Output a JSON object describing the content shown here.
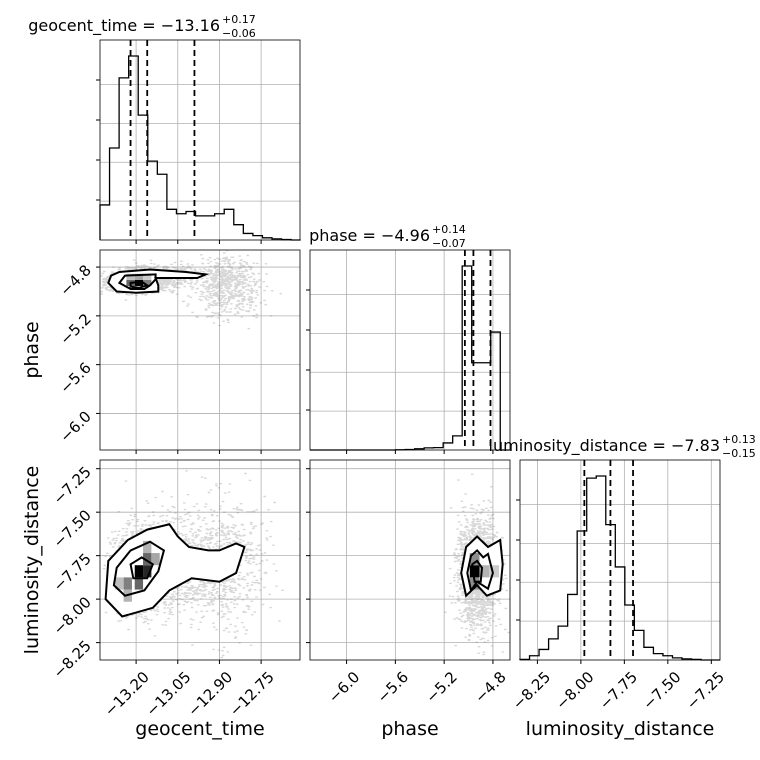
{
  "chart_data": {
    "type": "corner",
    "parameters": [
      {
        "name": "geocent_time",
        "title": "geocent_time = −13.16",
        "plus": "+0.17",
        "minus": "−0.06",
        "range": [
          -13.33,
          -12.61
        ],
        "ticks": [
          -13.2,
          -13.05,
          -12.9,
          -12.75
        ],
        "tick_labels": [
          "−13.20",
          "−13.05",
          "−12.90",
          "−12.75"
        ],
        "quantiles": [
          -13.22,
          -13.16,
          -12.99
        ],
        "hist_edges_start": -13.33,
        "hist_bin_width": 0.0344,
        "hist_values": [
          0.16,
          0.42,
          0.74,
          0.84,
          0.57,
          0.36,
          0.3,
          0.14,
          0.12,
          0.13,
          0.11,
          0.11,
          0.12,
          0.14,
          0.07,
          0.03,
          0.02,
          0.01,
          0.005,
          0.002,
          0.0
        ]
      },
      {
        "name": "phase",
        "title": "phase = −4.96",
        "plus": "+0.14",
        "minus": "−0.07",
        "range": [
          -6.3,
          -4.66
        ],
        "ticks": [
          -6.0,
          -5.6,
          -5.2,
          -4.8
        ],
        "tick_labels": [
          "−6.0",
          "−5.6",
          "−5.2",
          "−4.8"
        ],
        "quantiles": [
          -5.03,
          -4.96,
          -4.82
        ],
        "hist_edges_start": -6.3,
        "hist_bin_width": 0.078,
        "hist_values": [
          0,
          0,
          0,
          0,
          0,
          0,
          0,
          0,
          0,
          0.001,
          0.002,
          0.005,
          0.009,
          0.01,
          0.03,
          0.06,
          0.78,
          0.37,
          0.37,
          0.5,
          0
        ]
      },
      {
        "name": "luminosity_distance",
        "title": "luminosity_distance = −7.83",
        "plus": "+0.13",
        "minus": "−0.15",
        "range": [
          -8.35,
          -7.2
        ],
        "ticks": [
          -8.25,
          -8.0,
          -7.75,
          -7.5,
          -7.25
        ],
        "tick_labels": [
          "−8.25",
          "−8.00",
          "−7.75",
          "−7.50",
          "−7.25"
        ],
        "quantiles": [
          -7.98,
          -7.83,
          -7.7
        ],
        "hist_edges_start": -8.35,
        "hist_bin_width": 0.0548,
        "hist_values": [
          0.003,
          0.02,
          0.05,
          0.1,
          0.16,
          0.31,
          0.61,
          0.86,
          0.87,
          0.64,
          0.44,
          0.26,
          0.14,
          0.06,
          0.03,
          0.02,
          0.01,
          0.005,
          0.003,
          0.0,
          0.0
        ]
      }
    ],
    "blobs": {
      "geocent_time__phase": [
        {
          "x": -13.19,
          "y": -4.92,
          "sx": 0.06,
          "sy": 0.04,
          "w": 0.5
        },
        {
          "x": -13.12,
          "y": -4.86,
          "sx": 0.07,
          "sy": 0.035,
          "w": 0.25
        },
        {
          "x": -12.88,
          "y": -4.95,
          "sx": 0.06,
          "sy": 0.12,
          "w": 0.25
        }
      ],
      "geocent_time__luminosity_distance": [
        {
          "x": -13.19,
          "y": -7.84,
          "sx": 0.05,
          "sy": 0.12,
          "w": 0.45
        },
        {
          "x": -13.05,
          "y": -7.8,
          "sx": 0.08,
          "sy": 0.15,
          "w": 0.3
        },
        {
          "x": -12.88,
          "y": -7.8,
          "sx": 0.07,
          "sy": 0.18,
          "w": 0.25
        }
      ],
      "phase__luminosity_distance": [
        {
          "x": -4.93,
          "y": -7.85,
          "sx": 0.08,
          "sy": 0.15,
          "w": 1.0
        }
      ]
    },
    "contours": {
      "geocent_time__phase": [
        [
          [
            -13.26,
            -4.84
          ],
          [
            -13.15,
            -4.82
          ],
          [
            -13.02,
            -4.84
          ],
          [
            -12.95,
            -4.86
          ],
          [
            -12.98,
            -4.89
          ],
          [
            -13.13,
            -4.89
          ],
          [
            -13.12,
            -4.95
          ],
          [
            -13.12,
            -5.0
          ],
          [
            -13.2,
            -5.01
          ],
          [
            -13.27,
            -5.0
          ],
          [
            -13.3,
            -4.93
          ],
          [
            -13.29,
            -4.87
          ]
        ],
        [
          [
            -13.24,
            -4.87
          ],
          [
            -13.13,
            -4.86
          ],
          [
            -13.13,
            -4.9
          ],
          [
            -13.15,
            -4.95
          ],
          [
            -13.17,
            -4.98
          ],
          [
            -13.22,
            -4.98
          ],
          [
            -13.26,
            -4.93
          ]
        ],
        [
          [
            -13.22,
            -4.93
          ],
          [
            -13.18,
            -4.92
          ],
          [
            -13.16,
            -4.95
          ],
          [
            -13.19,
            -4.97
          ],
          [
            -13.22,
            -4.96
          ]
        ]
      ],
      "geocent_time__luminosity_distance": [
        [
          [
            -13.3,
            -7.78
          ],
          [
            -13.23,
            -7.66
          ],
          [
            -13.16,
            -7.6
          ],
          [
            -13.08,
            -7.57
          ],
          [
            -13.05,
            -7.64
          ],
          [
            -13.01,
            -7.7
          ],
          [
            -12.94,
            -7.72
          ],
          [
            -12.9,
            -7.72
          ],
          [
            -12.84,
            -7.68
          ],
          [
            -12.81,
            -7.7
          ],
          [
            -12.84,
            -7.85
          ],
          [
            -12.9,
            -7.9
          ],
          [
            -13.0,
            -7.88
          ],
          [
            -13.08,
            -7.95
          ],
          [
            -13.14,
            -8.05
          ],
          [
            -13.25,
            -8.1
          ],
          [
            -13.31,
            -8.0
          ]
        ],
        [
          [
            -13.27,
            -7.82
          ],
          [
            -13.22,
            -7.72
          ],
          [
            -13.15,
            -7.67
          ],
          [
            -13.1,
            -7.72
          ],
          [
            -13.12,
            -7.84
          ],
          [
            -13.17,
            -7.95
          ],
          [
            -13.24,
            -7.98
          ],
          [
            -13.28,
            -7.92
          ]
        ],
        [
          [
            -13.22,
            -7.8
          ],
          [
            -13.18,
            -7.76
          ],
          [
            -13.14,
            -7.8
          ],
          [
            -13.16,
            -7.88
          ],
          [
            -13.21,
            -7.88
          ]
        ]
      ],
      "phase__luminosity_distance": [
        [
          [
            -5.02,
            -7.7
          ],
          [
            -4.93,
            -7.64
          ],
          [
            -4.84,
            -7.7
          ],
          [
            -4.74,
            -7.66
          ],
          [
            -4.72,
            -7.8
          ],
          [
            -4.74,
            -7.95
          ],
          [
            -4.85,
            -7.98
          ],
          [
            -4.93,
            -7.92
          ],
          [
            -5.02,
            -7.98
          ],
          [
            -5.06,
            -7.85
          ]
        ],
        [
          [
            -4.98,
            -7.75
          ],
          [
            -4.93,
            -7.72
          ],
          [
            -4.88,
            -7.76
          ],
          [
            -4.84,
            -7.74
          ],
          [
            -4.8,
            -7.85
          ],
          [
            -4.84,
            -7.94
          ],
          [
            -4.93,
            -7.9
          ],
          [
            -4.98,
            -7.95
          ],
          [
            -5.01,
            -7.85
          ]
        ],
        [
          [
            -4.97,
            -7.8
          ],
          [
            -4.93,
            -7.78
          ],
          [
            -4.89,
            -7.82
          ],
          [
            -4.9,
            -7.9
          ],
          [
            -4.95,
            -7.9
          ]
        ]
      ]
    },
    "hist2d": {
      "geocent_time__phase": [
        {
          "x": -13.19,
          "y": -4.93,
          "v": 1.0
        },
        {
          "x": -13.22,
          "y": -4.93,
          "v": 0.6
        },
        {
          "x": -13.16,
          "y": -4.93,
          "v": 0.5
        },
        {
          "x": -13.19,
          "y": -4.88,
          "v": 0.35
        },
        {
          "x": -13.22,
          "y": -4.88,
          "v": 0.25
        },
        {
          "x": -13.16,
          "y": -4.88,
          "v": 0.2
        }
      ],
      "geocent_time__luminosity_distance": [
        {
          "x": -13.19,
          "y": -7.84,
          "v": 1.0
        },
        {
          "x": -13.16,
          "y": -7.84,
          "v": 0.85
        },
        {
          "x": -13.19,
          "y": -7.91,
          "v": 0.6
        },
        {
          "x": -13.16,
          "y": -7.77,
          "v": 0.6
        },
        {
          "x": -13.23,
          "y": -7.91,
          "v": 0.5
        },
        {
          "x": -13.13,
          "y": -7.77,
          "v": 0.35
        },
        {
          "x": -13.23,
          "y": -7.98,
          "v": 0.3
        },
        {
          "x": -13.26,
          "y": -7.91,
          "v": 0.25
        },
        {
          "x": -13.16,
          "y": -7.7,
          "v": 0.3
        }
      ],
      "phase__luminosity_distance": [
        {
          "x": -4.95,
          "y": -7.84,
          "v": 1.0
        },
        {
          "x": -4.95,
          "y": -7.77,
          "v": 0.45
        },
        {
          "x": -4.95,
          "y": -7.91,
          "v": 0.45
        },
        {
          "x": -4.87,
          "y": -7.84,
          "v": 0.3
        },
        {
          "x": -4.79,
          "y": -7.84,
          "v": 0.2
        }
      ]
    }
  }
}
